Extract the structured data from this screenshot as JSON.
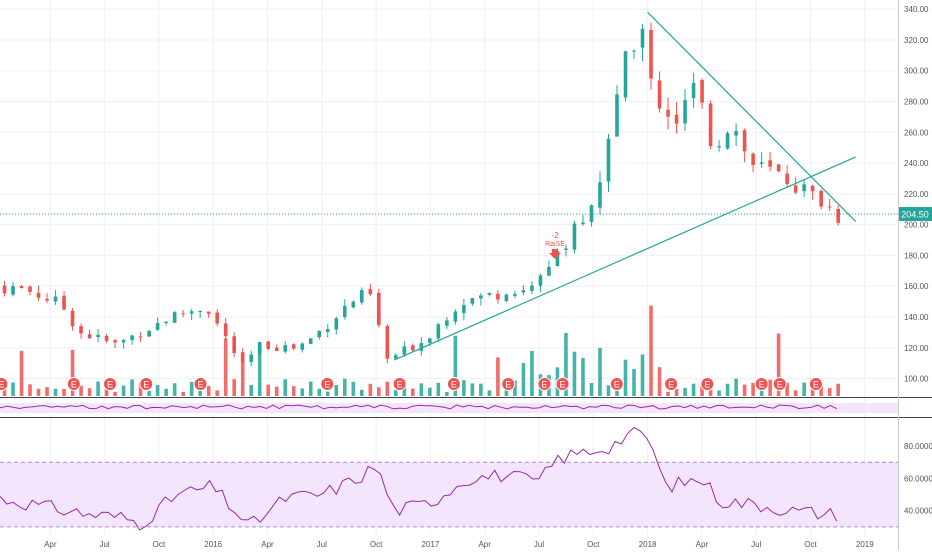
{
  "colors": {
    "up": "#26a69a",
    "down": "#ef5350",
    "trend": "#26a69a",
    "rsi": "#9c27b0",
    "rsi_band": "#f3e5fb",
    "grid": "#eef0f3",
    "axis_text": "#555555",
    "price_label_bg": "#26a69a"
  },
  "price_axis": {
    "labels": [
      "340.00",
      "320.00",
      "300.00",
      "280.00",
      "260.00",
      "240.00",
      "220.00",
      "200.00",
      "180.00",
      "160.00",
      "140.00",
      "120.00",
      "100.00"
    ],
    "current_price": "204.50"
  },
  "rsi_axis": {
    "labels": [
      "80.0000",
      "60.0000",
      "40.0000"
    ]
  },
  "time_axis": {
    "labels": [
      "Apr",
      "Jul",
      "Oct",
      "2016",
      "Apr",
      "Jul",
      "Oct",
      "2017",
      "Apr",
      "Jul",
      "Oct",
      "2018",
      "Apr",
      "Jul",
      "Oct",
      "2019"
    ]
  },
  "signal": {
    "value": "-2",
    "label": "RaiSE"
  },
  "earnings_marker": "E",
  "chart_data": {
    "type": "candlestick",
    "price_range": [
      88,
      344
    ],
    "rsi_range": [
      25,
      93
    ],
    "rsi_bands": [
      30,
      70
    ],
    "current_price": 204.5,
    "price_anchors": [
      [
        "2015-01",
        160
      ],
      [
        "2015-03",
        158
      ],
      [
        "2015-05",
        148
      ],
      [
        "2015-06",
        130
      ],
      [
        "2015-08",
        122
      ],
      [
        "2015-09",
        128
      ],
      [
        "2015-11",
        140
      ],
      [
        "2016-01",
        147
      ],
      [
        "2016-03",
        108
      ],
      [
        "2016-04",
        122
      ],
      [
        "2016-06",
        120
      ],
      [
        "2016-07",
        128
      ],
      [
        "2016-09",
        150
      ],
      [
        "2016-10",
        156
      ],
      [
        "2016-11",
        112
      ],
      [
        "2017-01",
        125
      ],
      [
        "2017-03",
        150
      ],
      [
        "2017-05",
        155
      ],
      [
        "2017-07",
        158
      ],
      [
        "2017-08",
        178
      ],
      [
        "2017-10",
        205
      ],
      [
        "2017-11",
        240
      ],
      [
        "2017-12",
        300
      ],
      [
        "2018-01",
        328
      ],
      [
        "2018-02",
        280
      ],
      [
        "2018-03",
        268
      ],
      [
        "2018-04",
        290
      ],
      [
        "2018-05",
        250
      ],
      [
        "2018-06",
        268
      ],
      [
        "2018-07",
        240
      ],
      [
        "2018-09",
        230
      ],
      [
        "2018-11",
        215
      ],
      [
        "2018-12",
        204.5
      ]
    ],
    "rsi_anchors": [
      [
        "2015-01",
        48
      ],
      [
        "2015-03",
        44
      ],
      [
        "2015-06",
        38
      ],
      [
        "2015-08",
        36
      ],
      [
        "2015-09",
        32
      ],
      [
        "2015-11",
        50
      ],
      [
        "2016-01",
        55
      ],
      [
        "2016-03",
        30
      ],
      [
        "2016-05",
        48
      ],
      [
        "2016-07",
        50
      ],
      [
        "2016-09",
        60
      ],
      [
        "2016-10",
        68
      ],
      [
        "2016-11",
        40
      ],
      [
        "2017-01",
        45
      ],
      [
        "2017-03",
        60
      ],
      [
        "2017-05",
        62
      ],
      [
        "2017-07",
        58
      ],
      [
        "2017-08",
        72
      ],
      [
        "2017-09",
        75
      ],
      [
        "2017-11",
        80
      ],
      [
        "2017-12",
        88
      ],
      [
        "2018-01",
        86
      ],
      [
        "2018-02",
        55
      ],
      [
        "2018-04",
        60
      ],
      [
        "2018-05",
        46
      ],
      [
        "2018-07",
        44
      ],
      [
        "2018-09",
        40
      ],
      [
        "2018-11",
        38
      ]
    ],
    "support_line": {
      "from": [
        "2016-11",
        112
      ],
      "to": [
        "2018-12",
        244
      ]
    },
    "resistance_line": {
      "from": [
        "2018-01",
        338
      ],
      "to": [
        "2018-12",
        202
      ]
    },
    "earnings_dates": [
      "2015-01",
      "2015-05",
      "2015-07",
      "2015-09",
      "2015-12",
      "2016-07",
      "2016-11",
      "2017-02",
      "2017-05",
      "2017-07",
      "2017-08",
      "2017-11",
      "2018-02",
      "2018-04",
      "2018-07",
      "2018-08",
      "2018-10"
    ]
  }
}
